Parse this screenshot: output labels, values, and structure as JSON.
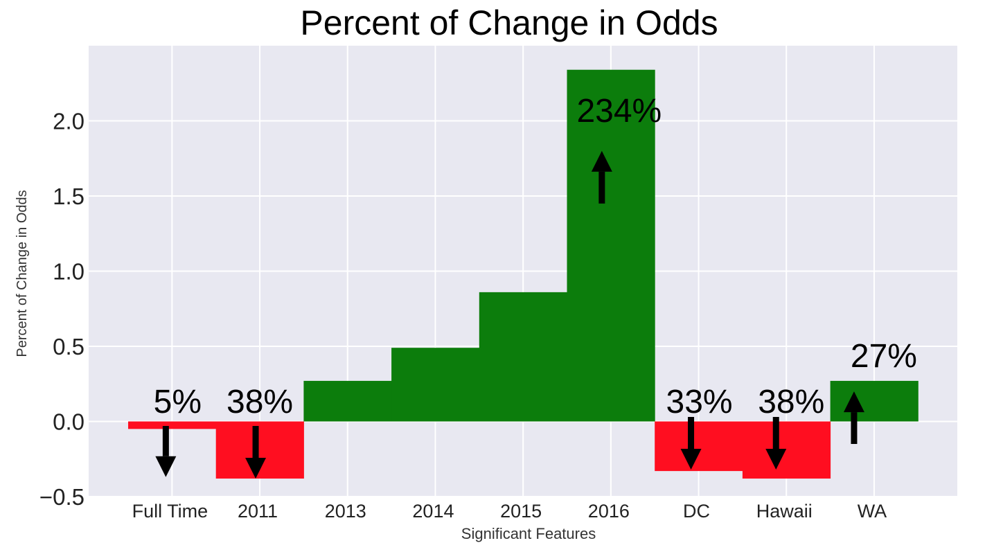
{
  "chart_data": {
    "type": "bar",
    "title": "Percent of Change in Odds",
    "xlabel": "Significant Features",
    "ylabel": "Percent of Change in Odds",
    "categories": [
      "Full Time",
      "2011",
      "2013",
      "2014",
      "2015",
      "2016",
      "DC",
      "Hawaii",
      "WA"
    ],
    "values": [
      -0.05,
      -0.38,
      0.27,
      0.49,
      0.86,
      2.34,
      -0.33,
      -0.38,
      0.27
    ],
    "bar_colors": [
      "#ff0e20",
      "#ff0e20",
      "#0c7d0c",
      "#0c7d0c",
      "#0c7d0c",
      "#0c7d0c",
      "#ff0e20",
      "#ff0e20",
      "#0c7d0c"
    ],
    "ylim": [
      -0.5,
      2.5
    ],
    "yticks": [
      -0.5,
      0.0,
      0.5,
      1.0,
      1.5,
      2.0
    ],
    "ytick_labels": [
      "−0.5",
      "0.0",
      "0.5",
      "1.0",
      "1.5",
      "2.0"
    ],
    "grid": true,
    "background_color": "#e8e8f1",
    "grid_color": "#ffffff",
    "annotations": [
      {
        "category": "Full Time",
        "text": "5%",
        "direction": "down",
        "y": 0.0
      },
      {
        "category": "2011",
        "text": "38%",
        "direction": "down",
        "y": 0.0
      },
      {
        "category": "2016",
        "text": "234%",
        "direction": "up",
        "y": 1.97
      },
      {
        "category": "DC",
        "text": "33%",
        "direction": "down",
        "y": 0.0
      },
      {
        "category": "Hawaii",
        "text": "38%",
        "direction": "down",
        "y": 0.0
      },
      {
        "category": "WA",
        "text": "27%",
        "direction": "up",
        "y": 0.35
      }
    ],
    "arrows": [
      {
        "category": "Full Time",
        "direction": "down",
        "from": -0.03,
        "to": -0.37
      },
      {
        "category": "2011",
        "direction": "down",
        "from": -0.03,
        "to": -0.38
      },
      {
        "category": "2016",
        "direction": "up",
        "from": 1.45,
        "to": 1.8
      },
      {
        "category": "DC",
        "direction": "down",
        "from": 0.03,
        "to": -0.32
      },
      {
        "category": "Hawaii",
        "direction": "down",
        "from": 0.03,
        "to": -0.32
      },
      {
        "category": "WA",
        "direction": "up",
        "from": -0.15,
        "to": 0.2
      }
    ]
  }
}
